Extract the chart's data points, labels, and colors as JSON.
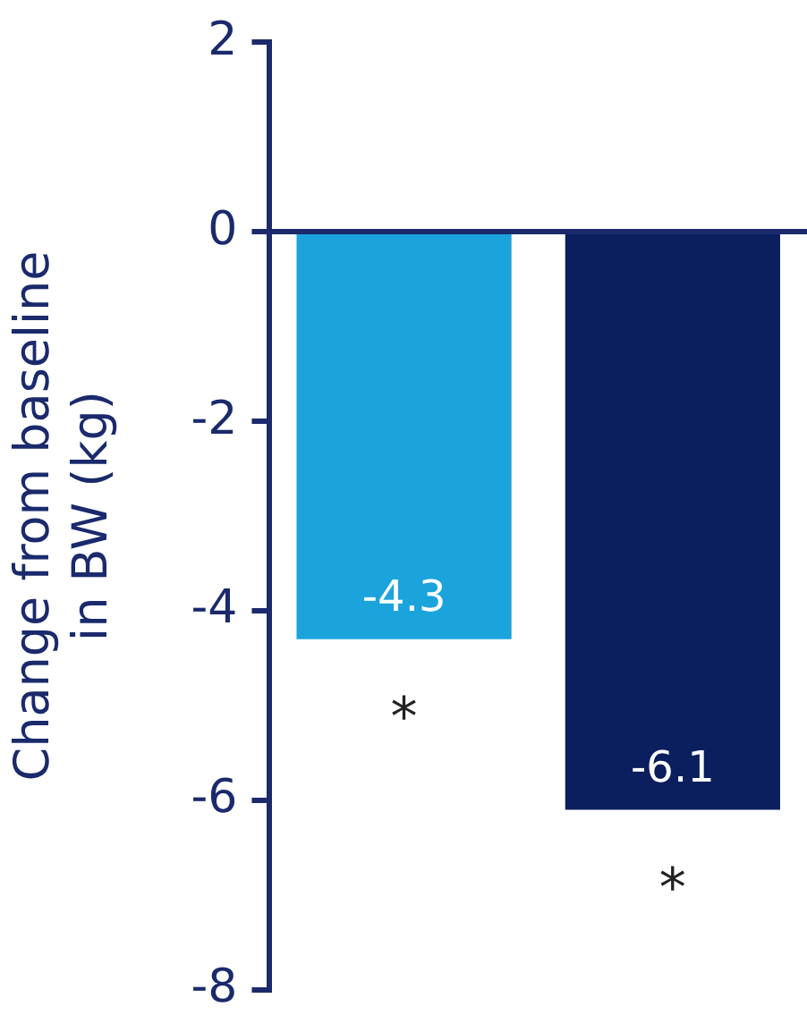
{
  "chart_data": {
    "type": "bar",
    "ylabel": "Change from baseline in BW (kg)",
    "categories": [
      null,
      null
    ],
    "values": [
      -4.3,
      -6.1
    ],
    "colors": [
      "#1ba3dc",
      "#0b1f5e"
    ],
    "ylim": [
      -8,
      2
    ],
    "yticks": [
      -8,
      -6,
      -4,
      -2,
      0,
      2
    ],
    "grid": false,
    "legend": false,
    "tick_labels": "y",
    "data_labels": true,
    "ref_lines": [
      {
        "axis": "y",
        "value": 0,
        "color": "#1a2a6c"
      }
    ],
    "annotations": [
      "*",
      "*"
    ]
  }
}
